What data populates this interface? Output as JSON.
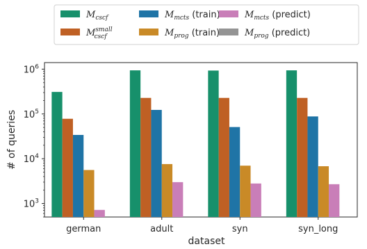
{
  "chart_data": {
    "type": "bar",
    "xlabel": "dataset",
    "ylabel": "# of queries",
    "yscale": "log",
    "ylim": [
      500,
      1400000
    ],
    "yticks": [
      {
        "value": 1000,
        "base": "10",
        "exp": "3"
      },
      {
        "value": 10000,
        "base": "10",
        "exp": "4"
      },
      {
        "value": 100000,
        "base": "10",
        "exp": "5"
      },
      {
        "value": 1000000,
        "base": "10",
        "exp": "6"
      }
    ],
    "grid": false,
    "legend_position": "top",
    "categories": [
      "german",
      "adult",
      "syn",
      "syn_long"
    ],
    "series": [
      {
        "name": "M_cscf",
        "legend": {
          "main": "M",
          "sub": "cscf",
          "sup": "",
          "suffix": ""
        },
        "color": "#17906b",
        "values": [
          310000,
          940000,
          930000,
          940000
        ]
      },
      {
        "name": "M_cscf^small",
        "legend": {
          "main": "M",
          "sub": "cscf",
          "sup": "small",
          "suffix": ""
        },
        "color": "#bf6024",
        "values": [
          78000,
          228000,
          228000,
          228000
        ]
      },
      {
        "name": "M_mcts (train)",
        "legend": {
          "main": "M",
          "sub": "mcts",
          "sup": "",
          "suffix": " (train)"
        },
        "color": "#1f74a6",
        "values": [
          34000,
          123000,
          51000,
          88000
        ]
      },
      {
        "name": "M_prog (train)",
        "legend": {
          "main": "M",
          "sub": "prog",
          "sup": "",
          "suffix": " (train)"
        },
        "color": "#c98a27",
        "values": [
          5600,
          7600,
          7000,
          6800
        ]
      },
      {
        "name": "M_mcts (predict)",
        "legend": {
          "main": "M",
          "sub": "mcts",
          "sup": "",
          "suffix": " (predict)"
        },
        "color": "#c97eb8",
        "values": [
          720,
          3000,
          2800,
          2700
        ]
      },
      {
        "name": "M_prog (predict)",
        "legend": {
          "main": "M",
          "sub": "prog",
          "sup": "",
          "suffix": " (predict)"
        },
        "color": "#949494",
        "values": [
          null,
          null,
          null,
          null
        ]
      }
    ]
  }
}
